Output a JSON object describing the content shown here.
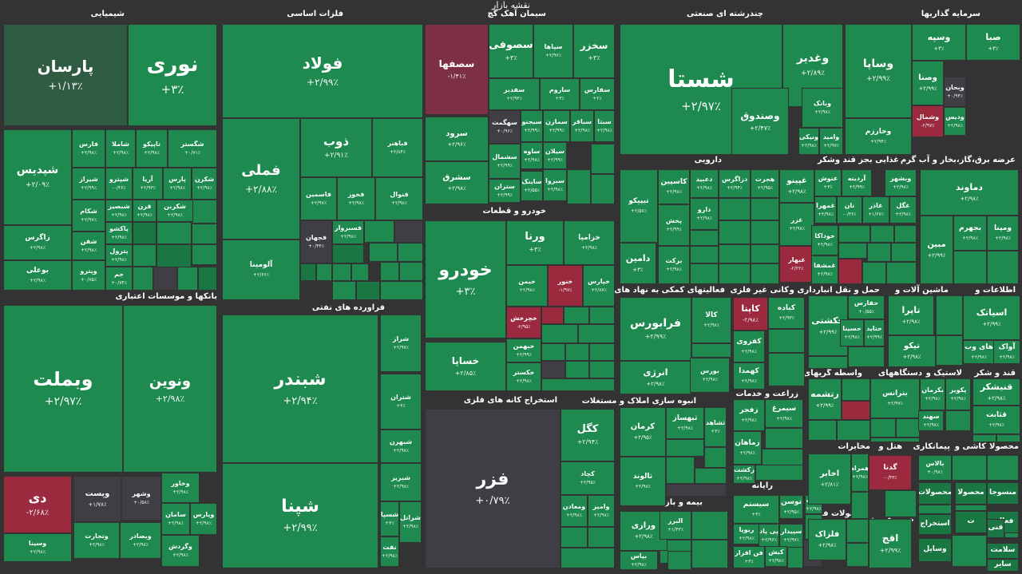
{
  "header": {
    "title": "نقشه بازار"
  },
  "colors": {
    "background": "#333333",
    "positive": "#1e8a4f",
    "negative": "#9b2a3e",
    "neutral": "#3e3e44"
  },
  "sections": {
    "s1": "شیمیایی",
    "s2": "فلزات اساسی",
    "s3": "سیمان آهک گچ",
    "s4": "چندرشته ای صنعتی",
    "s5": "سرمایه گذاریها",
    "s6": "بانکها و موسسات اعتباری",
    "s7": "فراورده های نفتی",
    "s8": "خودرو و قطعات",
    "s9": "استخراج کانه های فلزی",
    "s10": "دارویی",
    "s11": "غذایی بجز قند وشکر",
    "s12": "عرضه برق،گاز،بخار و آب گرم",
    "s13": "فعالیتهای کمکی به نهاد های مالی",
    "s14": "کانی غیر فلزی",
    "s15": "حمل و نقل انبارداری و",
    "s16": "ماشین آلات و",
    "s17": "اطلاعات و",
    "s18": "انبوه سازی املاک و مستغلات",
    "s19": "زراعت و خدمات",
    "s20": "واسطه گریهای",
    "s21": "دستگاههای",
    "s22": "لاستیک و",
    "s23": "قند و شکر",
    "s24": "رایانه",
    "s25": "بیمه و بازنشستگی",
    "s26": "مخابرات",
    "s27": "هتل و",
    "s28": "پیمانکاری",
    "s29": "کاشی و",
    "s30": "محصولا",
    "s31": "محصولات فلزی",
    "s32": "خرده فروشی"
  },
  "tiles": [
    {
      "name": "پارسان",
      "change": "+۱/۱۳٪"
    },
    {
      "name": "نوری",
      "change": "+۳٪"
    },
    {
      "name": "شپدیس",
      "change": "+۲/۰۹٪"
    },
    {
      "name": "فارس",
      "change": "+۲/۹۸٪"
    },
    {
      "name": "شاملا",
      "change": "+۲/۹۸٪"
    },
    {
      "name": "تاپیکو",
      "change": "+۲/۹۸٪"
    },
    {
      "name": "شگستر",
      "change": "+۰/۷۱٪"
    },
    {
      "name": "شیراز",
      "change": "+۲/۹۹٪"
    },
    {
      "name": "شپترو",
      "change": "-۰/۳۶٪"
    },
    {
      "name": "آریا",
      "change": "+۲/۹۳٪"
    },
    {
      "name": "پارس",
      "change": "+۲/۹۸٪"
    },
    {
      "name": "شکرن",
      "change": "+۲/۹۸٪"
    },
    {
      "name": "زاگرس",
      "change": "+۲/۹۸٪"
    },
    {
      "name": "شکام",
      "change": "+۲/۹۷٪"
    },
    {
      "name": "شبصیر",
      "change": "+۲/۹۸٪"
    },
    {
      "name": "قرن",
      "change": "+۲/۹۸٪"
    },
    {
      "name": "شکربن",
      "change": "+۲/۹۸٪"
    },
    {
      "name": "شفن",
      "change": "+۲/۹۸٪"
    },
    {
      "name": "پاکشو",
      "change": "+۲/۹۸٪"
    },
    {
      "name": "بوعلی",
      "change": "+۲/۹۸٪"
    },
    {
      "name": "پترول",
      "change": "+۲/۹۸٪"
    },
    {
      "name": "وپترو",
      "change": "+۰/۷۵٪"
    },
    {
      "name": "جم",
      "change": "+۰/۷۴٪"
    },
    {
      "name": "فولاد",
      "change": "+۲/۹۹٪"
    },
    {
      "name": "فملی",
      "change": "+۲/۸۸٪"
    },
    {
      "name": "ذوب",
      "change": "+۲/۹۱٪"
    },
    {
      "name": "فباهنر",
      "change": "+۲/۸۴٪"
    },
    {
      "name": "فاسمین",
      "change": "+۲/۹۷٪"
    },
    {
      "name": "فخوز",
      "change": "+۲/۹۸٪"
    },
    {
      "name": "فنوال",
      "change": "+۲/۹۸٪"
    },
    {
      "name": "فجهان",
      "change": "+۰/۴۴٪"
    },
    {
      "name": "فسبزوار",
      "change": "+۲/۹۸٪"
    },
    {
      "name": "آلومینا",
      "change": "+۲/۶۶٪"
    },
    {
      "name": "سصفها",
      "change": "-۱/۴۱٪"
    },
    {
      "name": "سصوفی",
      "change": "+۳٪"
    },
    {
      "name": "سپاها",
      "change": "+۲/۹۶٪"
    },
    {
      "name": "سخزر",
      "change": "+۳٪"
    },
    {
      "name": "سفدبر",
      "change": "+۲/۹۴٪"
    },
    {
      "name": "ساروم",
      "change": "+۳٪"
    },
    {
      "name": "سفارس",
      "change": "+۲٪"
    },
    {
      "name": "سرود",
      "change": "+۲/۹۶٪"
    },
    {
      "name": "سهگمت",
      "change": "+۰/۹۶٪"
    },
    {
      "name": "سیجنو",
      "change": "+۲/۹۹٪"
    },
    {
      "name": "سمازن",
      "change": "+۲/۹۹٪"
    },
    {
      "name": "سباقر",
      "change": "+۲/۹۸٪"
    },
    {
      "name": "سبتا",
      "change": "+۲/۹۸٪"
    },
    {
      "name": "سشمال",
      "change": "+۲/۹۹٪"
    },
    {
      "name": "ساوه",
      "change": "+۲/۹۸٪"
    },
    {
      "name": "سیلان",
      "change": "+۲/۹۹٪"
    },
    {
      "name": "سشرق",
      "change": "+۲/۹۸٪"
    },
    {
      "name": "ستران",
      "change": "+۲/۹۹٪"
    },
    {
      "name": "ساینک",
      "change": "+۲/۵۵٪"
    },
    {
      "name": "سبزوا",
      "change": "+۲/۹۸٪"
    },
    {
      "name": "شستا",
      "change": "+۲/۹۷٪"
    },
    {
      "name": "وغدیر",
      "change": "+۲/۸۹٪"
    },
    {
      "name": "وصندوق",
      "change": "+۲/۴۷٪"
    },
    {
      "name": "وبانک",
      "change": "+۲/۹۸٪"
    },
    {
      "name": "وامید",
      "change": "+۲/۹۷٪"
    },
    {
      "name": "ونیکی",
      "change": "+۲/۹۸٪"
    },
    {
      "name": "وسپه",
      "change": "+۳٪"
    },
    {
      "name": "صبا",
      "change": "+۳٪"
    },
    {
      "name": "وساپا",
      "change": "+۲/۹۹٪"
    },
    {
      "name": "وصنا",
      "change": "+۲/۹۹٪"
    },
    {
      "name": "وبحان",
      "change": "+۰/۹۴٪"
    },
    {
      "name": "وشمال",
      "change": "-۲/۹۷٪"
    },
    {
      "name": "ودیس",
      "change": "+۲/۹۸٪"
    },
    {
      "name": "وخارزم",
      "change": "+۲/۹۴٪"
    },
    {
      "name": "وبملت",
      "change": "+۲/۹۷٪"
    },
    {
      "name": "ونوین",
      "change": "+۲/۹۸٪"
    },
    {
      "name": "دی",
      "change": "-۲/۶۸٪"
    },
    {
      "name": "وپست",
      "change": "+۱/۷۸٪"
    },
    {
      "name": "وشهر",
      "change": "+۰/۵۸٪"
    },
    {
      "name": "وخاور",
      "change": "+۲/۹۸٪"
    },
    {
      "name": "سامان",
      "change": "+۲/۹۸٪"
    },
    {
      "name": "وپارس",
      "change": "+۲/۹۸٪"
    },
    {
      "name": "وتجارت",
      "change": "+۲/۹۸٪"
    },
    {
      "name": "وبصادر",
      "change": "+۲/۹۸٪"
    },
    {
      "name": "وسینا",
      "change": "+۲/۹۸٪"
    },
    {
      "name": "وگردش",
      "change": "+۲/۹۸٪"
    },
    {
      "name": "شبندر",
      "change": "+۲/۹۴٪"
    },
    {
      "name": "شپنا",
      "change": "+۲/۹۹٪"
    },
    {
      "name": "شراز",
      "change": "+۲/۹۷٪"
    },
    {
      "name": "شتران",
      "change": "+۳٪"
    },
    {
      "name": "شبهرن",
      "change": "+۲/۹۸٪"
    },
    {
      "name": "شبریز",
      "change": "+۲/۹۸٪"
    },
    {
      "name": "شسپا",
      "change": "+۳٪"
    },
    {
      "name": "شرانل",
      "change": "+۲/۹۸٪"
    },
    {
      "name": "نفت",
      "change": "+۲/۹۸٪"
    },
    {
      "name": "خودرو",
      "change": "+۳٪"
    },
    {
      "name": "ورنا",
      "change": "+۳٪"
    },
    {
      "name": "خزامیا",
      "change": "+۲/۹۸٪"
    },
    {
      "name": "خیمن",
      "change": "+۲/۹۸٪"
    },
    {
      "name": "خنور",
      "change": "-۱/۹۷٪"
    },
    {
      "name": "خپارس",
      "change": "+۲/۸۷٪"
    },
    {
      "name": "خچرخش",
      "change": "-۲/۹۵٪"
    },
    {
      "name": "خبهمن",
      "change": "+۲/۹۹٪"
    },
    {
      "name": "خساپا",
      "change": "+۲/۸۵٪"
    },
    {
      "name": "خکستر",
      "change": "+۲/۹۸٪"
    },
    {
      "name": "فزر",
      "change": "+۰/۷۹٪"
    },
    {
      "name": "کگل",
      "change": "+۲/۹۴٪"
    },
    {
      "name": "کچاد",
      "change": "+۲/۹۵٪"
    },
    {
      "name": "ومعادن",
      "change": "+۲/۹۸٪"
    },
    {
      "name": "وامیر",
      "change": "+۲/۹۸٪"
    },
    {
      "name": "تیپیکو",
      "change": "+۲/۵۷٪"
    },
    {
      "name": "کاسپین",
      "change": "+۲/۹۸٪"
    },
    {
      "name": "دعبید",
      "change": "+۲/۹۸٪"
    },
    {
      "name": "دزاگرس",
      "change": "+۲/۹۴٪"
    },
    {
      "name": "هجرت",
      "change": "+۲/۹۵٪"
    },
    {
      "name": "دامین",
      "change": "+۳٪"
    },
    {
      "name": "پخش",
      "change": "+۲/۹۹٪"
    },
    {
      "name": "دارو",
      "change": "+۲/۹۸٪"
    },
    {
      "name": "برکت",
      "change": "+۲/۹۸٪"
    },
    {
      "name": "غپینو",
      "change": "+۲/۹۸٪"
    },
    {
      "name": "غزر",
      "change": "+۲/۹۸٪"
    },
    {
      "name": "غبهار",
      "change": "-۲/۲۲٪"
    },
    {
      "name": "غنوش",
      "change": "+۳٪"
    },
    {
      "name": "آردینه",
      "change": "+۲/۹۹٪"
    },
    {
      "name": "وبشهر",
      "change": "+۲/۹۸٪"
    },
    {
      "name": "غمهرا",
      "change": "+۲/۹۸٪"
    },
    {
      "name": "نان",
      "change": "-۰/۳۶٪"
    },
    {
      "name": "غاذر",
      "change": "+۱/۶۷٪"
    },
    {
      "name": "غگل",
      "change": "+۲/۹۸٪"
    },
    {
      "name": "خوداکا",
      "change": "+۲/۹۸٪"
    },
    {
      "name": "غمشفا",
      "change": "+۲/۹۸٪"
    },
    {
      "name": "دماوند",
      "change": "+۲/۹۸٪"
    },
    {
      "name": "بجهرم",
      "change": "+۲/۹۸٪"
    },
    {
      "name": "ومپنا",
      "change": "+۲/۹۸٪"
    },
    {
      "name": "مبین",
      "change": "+۲/۹۹٪"
    },
    {
      "name": "فرابورس",
      "change": "+۲/۹۹٪"
    },
    {
      "name": "کالا",
      "change": "+۲/۹۸٪"
    },
    {
      "name": "انرژی",
      "change": "+۲/۹۸٪"
    },
    {
      "name": "بورس",
      "change": "+۲/۹۸٪"
    },
    {
      "name": "کاپتا",
      "change": "-۲/۹۸٪"
    },
    {
      "name": "کباده",
      "change": "+۲/۹۳٪"
    },
    {
      "name": "کفزوی",
      "change": "+۲/۹۸٪"
    },
    {
      "name": "کهمدا",
      "change": "+۲/۹۸٪"
    },
    {
      "name": "حکشتی",
      "change": "+۲/۹۹٪"
    },
    {
      "name": "حفارس",
      "change": "+۰/۵۵٪"
    },
    {
      "name": "حسینا",
      "change": "+۲/۹۸٪"
    },
    {
      "name": "حتاید",
      "change": "+۲/۹۹٪"
    },
    {
      "name": "تاپرا",
      "change": "+۲/۹۸٪"
    },
    {
      "name": "تیکو",
      "change": "+۲/۹۸٪"
    },
    {
      "name": "اسیاتک",
      "change": "+۲/۹۹٪"
    },
    {
      "name": "های وب",
      "change": "+۲/۹۸٪"
    },
    {
      "name": "آواک",
      "change": "+۲/۹۸٪"
    },
    {
      "name": "کرمان",
      "change": "+۲/۹۵٪"
    },
    {
      "name": "ثبهساز",
      "change": "+۲/۹۸٪"
    },
    {
      "name": "ثالوند",
      "change": "+۲/۹۸٪"
    },
    {
      "name": "ثشاهد",
      "change": "+۳٪"
    },
    {
      "name": "زفجر",
      "change": "+۲/۹۸٪"
    },
    {
      "name": "سیمرغ",
      "change": "+۲/۹۸٪"
    },
    {
      "name": "زماهان",
      "change": "+۲/۹۸٪"
    },
    {
      "name": "زکشت",
      "change": "+۲/۹۸٪"
    },
    {
      "name": "رتشمه",
      "change": "+۲/۹۹٪"
    },
    {
      "name": "بترانس",
      "change": "+۲/۹۷٪"
    },
    {
      "name": "بکرمان",
      "change": "+۲/۹۸٪"
    },
    {
      "name": "پکویر",
      "change": "+۲/۹۸٪"
    },
    {
      "name": "سهند",
      "change": "+۲/۹۸٪"
    },
    {
      "name": "قنیشکر",
      "change": "+۲/۹۸٪"
    },
    {
      "name": "قثابت",
      "change": "+۲/۹۸٪"
    },
    {
      "name": "سیستم",
      "change": "+۳٪"
    },
    {
      "name": "توسن",
      "change": "+۲/۹۵٪"
    },
    {
      "name": "رتاپ",
      "change": "+۲/۹۸٪"
    },
    {
      "name": "ریوپا",
      "change": "+۲/۹۸٪"
    },
    {
      "name": "پی پاد",
      "change": "+۲/۹۶٪"
    },
    {
      "name": "سپیدار",
      "change": "+۲/۹۷٪"
    },
    {
      "name": "فن افزار",
      "change": "+۳٪"
    },
    {
      "name": "کیش",
      "change": "+۲/۹۸٪"
    },
    {
      "name": "ورازی",
      "change": "+۲/۹۸٪"
    },
    {
      "name": "البرز",
      "change": "+۱/۴۳٪"
    },
    {
      "name": "بپاس",
      "change": "+۲/۹۸٪"
    },
    {
      "name": "اخابر",
      "change": "+۲/۸۱٪"
    },
    {
      "name": "همراه",
      "change": "+۲/۹۸٪"
    },
    {
      "name": "فلزاک",
      "change": "+۲/۹۸٪"
    },
    {
      "name": "اقج",
      "change": "+۲/۹۹٪"
    },
    {
      "name": "گدنا",
      "change": "-۰/۴۳٪"
    },
    {
      "name": "بالاس",
      "change": "+۰/۹۸٪"
    },
    {
      "name": "محصولات",
      "change": ""
    },
    {
      "name": "استخراج",
      "change": ""
    },
    {
      "name": "وسایل",
      "change": ""
    },
    {
      "name": "فعالی",
      "change": ""
    },
    {
      "name": "سلامت",
      "change": ""
    },
    {
      "name": "سایر",
      "change": ""
    },
    {
      "name": "محصولا",
      "change": ""
    },
    {
      "name": "منسوجا",
      "change": ""
    },
    {
      "name": "فنی",
      "change": ""
    },
    {
      "name": "ت",
      "change": ""
    }
  ]
}
